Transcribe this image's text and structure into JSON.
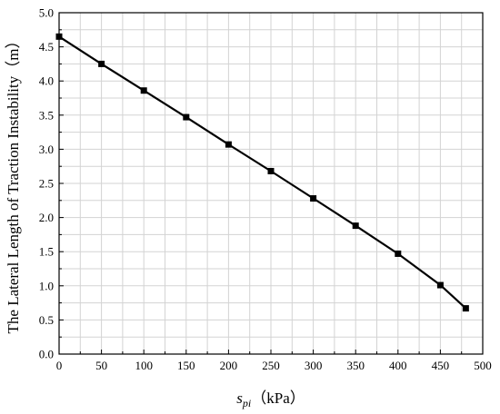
{
  "chart_data": {
    "type": "line",
    "title": "",
    "xlabel_main": "s",
    "xlabel_sub": "pi",
    "xlabel_unit": "（kPa）",
    "ylabel": "The Lateral Length of Traction Instability（m）",
    "xlim": [
      0,
      500
    ],
    "ylim": [
      0,
      5
    ],
    "x_ticks": [
      0,
      50,
      100,
      150,
      200,
      250,
      300,
      350,
      400,
      450,
      500
    ],
    "x_tick_labels": [
      "0",
      "50",
      "100",
      "150",
      "200",
      "250",
      "300",
      "350",
      "400",
      "450",
      "500"
    ],
    "y_ticks": [
      0,
      0.5,
      1,
      1.5,
      2,
      2.5,
      3,
      3.5,
      4,
      4.5,
      5
    ],
    "y_tick_labels": [
      "0.0",
      "0.5",
      "1.0",
      "1.5",
      "2.0",
      "2.5",
      "3.0",
      "3.5",
      "4.0",
      "4.5",
      "5.0"
    ],
    "grid": true,
    "marker": "square",
    "series": [
      {
        "x": [
          0,
          50,
          100,
          150,
          200,
          250,
          300,
          350,
          400,
          450,
          480
        ],
        "y": [
          4.65,
          4.25,
          3.86,
          3.47,
          3.07,
          2.68,
          2.28,
          1.88,
          1.47,
          1.01,
          0.67
        ]
      }
    ],
    "colors": {
      "line": "#000000",
      "grid": "#d3d3d3"
    }
  }
}
